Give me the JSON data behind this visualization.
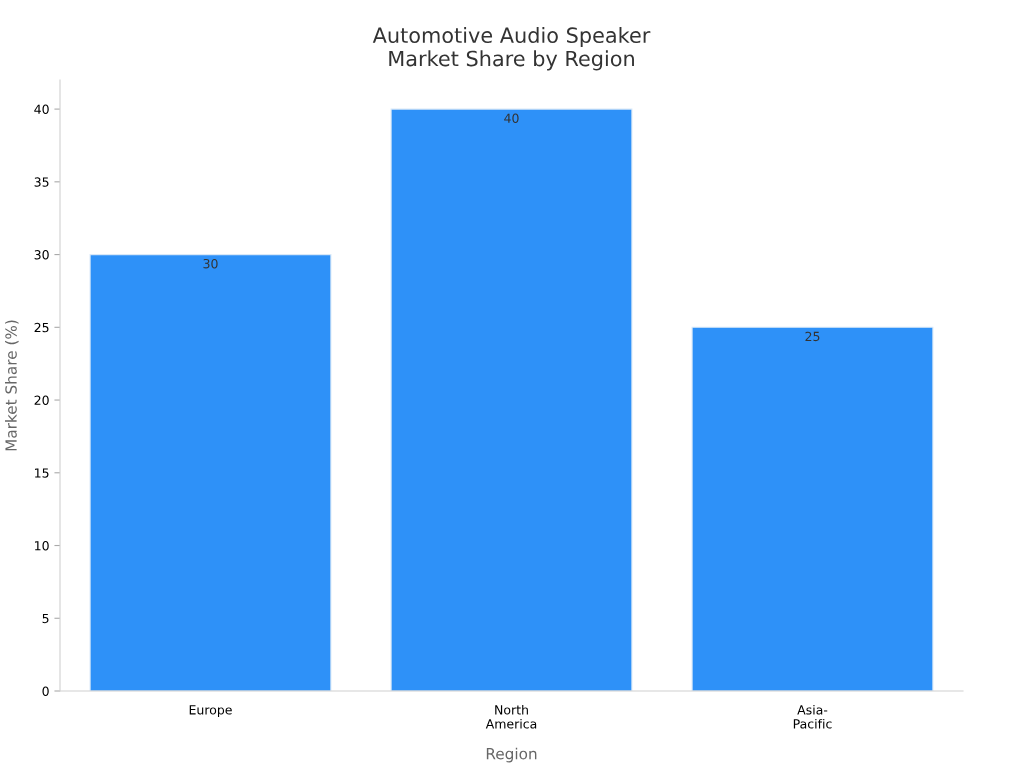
{
  "chart_data": {
    "type": "bar",
    "title": "Automotive Audio Speaker\nMarket Share by Region",
    "xlabel": "Region",
    "ylabel": "Market Share (%)",
    "categories": [
      "Europe",
      "North\nAmerica",
      "Asia-\nPacific"
    ],
    "values": [
      30,
      40,
      25
    ],
    "color": "#2e91f8",
    "ylim": [
      0,
      42
    ],
    "yticks": [
      0,
      5,
      10,
      15,
      20,
      25,
      30,
      35,
      40
    ],
    "grid": false,
    "data_labels": true
  }
}
